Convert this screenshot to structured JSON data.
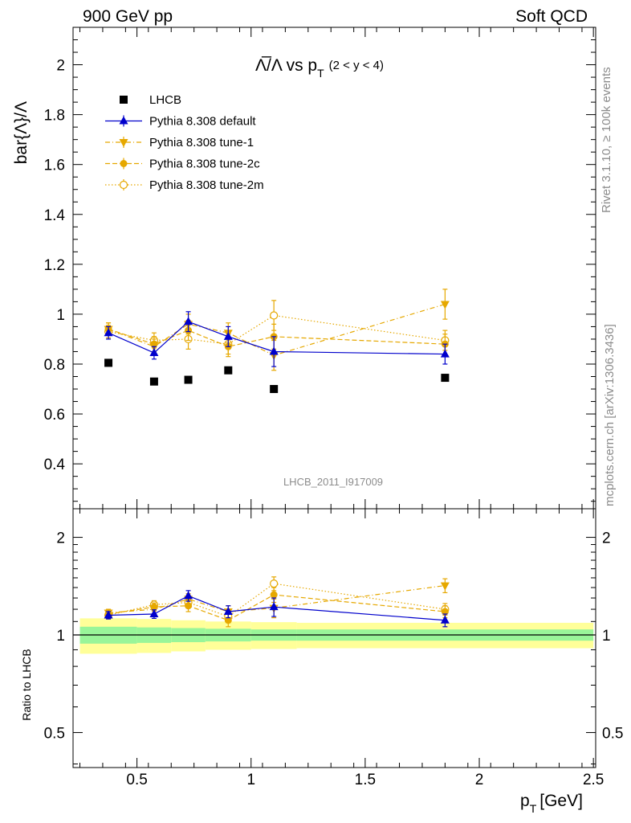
{
  "header": {
    "left": "900 GeV pp",
    "right": "Soft QCD"
  },
  "side_labels": {
    "rivet": "Rivet 3.1.10, ≥ 100k events",
    "site": "mcplots.cern.ch [arXiv:1306.3436]"
  },
  "colors": {
    "data": "#000000",
    "default": "#0000cc",
    "tune": "#e6a800",
    "band_inner": "#99f599",
    "band_outer": "#ffff99",
    "side_text": "#8c8c8c"
  },
  "chart_data": {
    "type": "scatter",
    "title_main": "Λ̅/Λ vs p",
    "title_sub": "T",
    "title_cond": "(2 < y < 4)",
    "ylabel": "bar{Λ}/Λ",
    "ratio_ylabel": "Ratio to LHCB",
    "xlabel": "p",
    "xlabel_sub": "T",
    "xlabel_unit": "[GeV]",
    "analysis": "LHCB_2011_I917009",
    "xlim": [
      0.22,
      2.51
    ],
    "ylim": [
      0.22,
      2.15
    ],
    "ratio_ylim": [
      0.39,
      2.45
    ],
    "ratio_log": true,
    "x_ticks": [
      0.5,
      1,
      1.5,
      2,
      2.5
    ],
    "x_tick_labels": [
      "0.5",
      "1",
      "1.5",
      "2",
      "2.5"
    ],
    "y_ticks": [
      0.4,
      0.6,
      0.8,
      1,
      1.2,
      1.4,
      1.6,
      1.8,
      2
    ],
    "y_tick_labels": [
      "0.4",
      "0.6",
      "0.8",
      "1",
      "1.2",
      "1.4",
      "1.6",
      "1.8",
      "2"
    ],
    "ratio_ticks": [
      0.5,
      1,
      2
    ],
    "ratio_tick_labels": [
      "0.5",
      "1",
      "2"
    ],
    "bins": [
      [
        0.25,
        0.5
      ],
      [
        0.5,
        0.65
      ],
      [
        0.65,
        0.8
      ],
      [
        0.8,
        1.0
      ],
      [
        1.0,
        1.2
      ],
      [
        1.2,
        2.5
      ]
    ],
    "band_inner": [
      0.06,
      0.055,
      0.05,
      0.045,
      0.04,
      0.04
    ],
    "band_outer": [
      0.125,
      0.12,
      0.11,
      0.1,
      0.095,
      0.09
    ],
    "series": [
      {
        "name": "LHCB",
        "style": "data",
        "x": [
          0.375,
          0.575,
          0.725,
          0.9,
          1.1,
          1.85
        ],
        "y": [
          0.805,
          0.73,
          0.737,
          0.775,
          0.7,
          0.745
        ],
        "err": [
          0,
          0,
          0,
          0,
          0,
          0
        ]
      },
      {
        "name": "Pythia 8.308 default",
        "style": "default",
        "x": [
          0.375,
          0.575,
          0.725,
          0.9,
          1.1,
          1.85
        ],
        "y": [
          0.925,
          0.845,
          0.97,
          0.91,
          0.85,
          0.84
        ],
        "err": [
          0.025,
          0.025,
          0.04,
          0.04,
          0.06,
          0.04
        ]
      },
      {
        "name": "Pythia 8.308 tune-1",
        "style": "tune1",
        "x": [
          0.375,
          0.575,
          0.725,
          0.9,
          1.1,
          1.85
        ],
        "y": [
          0.94,
          0.87,
          0.96,
          0.925,
          0.835,
          1.04
        ],
        "err": [
          0.025,
          0.03,
          0.04,
          0.04,
          0.06,
          0.06
        ]
      },
      {
        "name": "Pythia 8.308 tune-2c",
        "style": "tune2c",
        "x": [
          0.375,
          0.575,
          0.725,
          0.9,
          1.1,
          1.85
        ],
        "y": [
          0.94,
          0.88,
          0.935,
          0.87,
          0.91,
          0.88
        ],
        "err": [
          0.025,
          0.03,
          0.04,
          0.04,
          0.05,
          0.04
        ]
      },
      {
        "name": "Pythia 8.308 tune-2m",
        "style": "tune2m",
        "x": [
          0.375,
          0.575,
          0.725,
          0.9,
          1.1,
          1.85
        ],
        "y": [
          0.93,
          0.895,
          0.9,
          0.88,
          0.995,
          0.895
        ],
        "err": [
          0.025,
          0.03,
          0.04,
          0.04,
          0.06,
          0.04
        ]
      }
    ],
    "ratio_series": [
      {
        "name": "Pythia 8.308 default",
        "style": "default",
        "y": [
          1.15,
          1.16,
          1.32,
          1.18,
          1.22,
          1.11
        ],
        "err": [
          0.03,
          0.035,
          0.05,
          0.05,
          0.08,
          0.05
        ]
      },
      {
        "name": "Pythia 8.308 tune-1",
        "style": "tune1",
        "y": [
          1.17,
          1.2,
          1.29,
          1.18,
          1.21,
          1.42
        ],
        "err": [
          0.03,
          0.035,
          0.05,
          0.05,
          0.08,
          0.07
        ]
      },
      {
        "name": "Pythia 8.308 tune-2c",
        "style": "tune2c",
        "y": [
          1.16,
          1.22,
          1.23,
          1.11,
          1.33,
          1.18
        ],
        "err": [
          0.03,
          0.035,
          0.05,
          0.05,
          0.07,
          0.05
        ]
      },
      {
        "name": "Pythia 8.308 tune-2m",
        "style": "tune2m",
        "y": [
          1.15,
          1.24,
          1.26,
          1.14,
          1.44,
          1.2
        ],
        "err": [
          0.03,
          0.035,
          0.05,
          0.05,
          0.07,
          0.05
        ]
      }
    ]
  }
}
